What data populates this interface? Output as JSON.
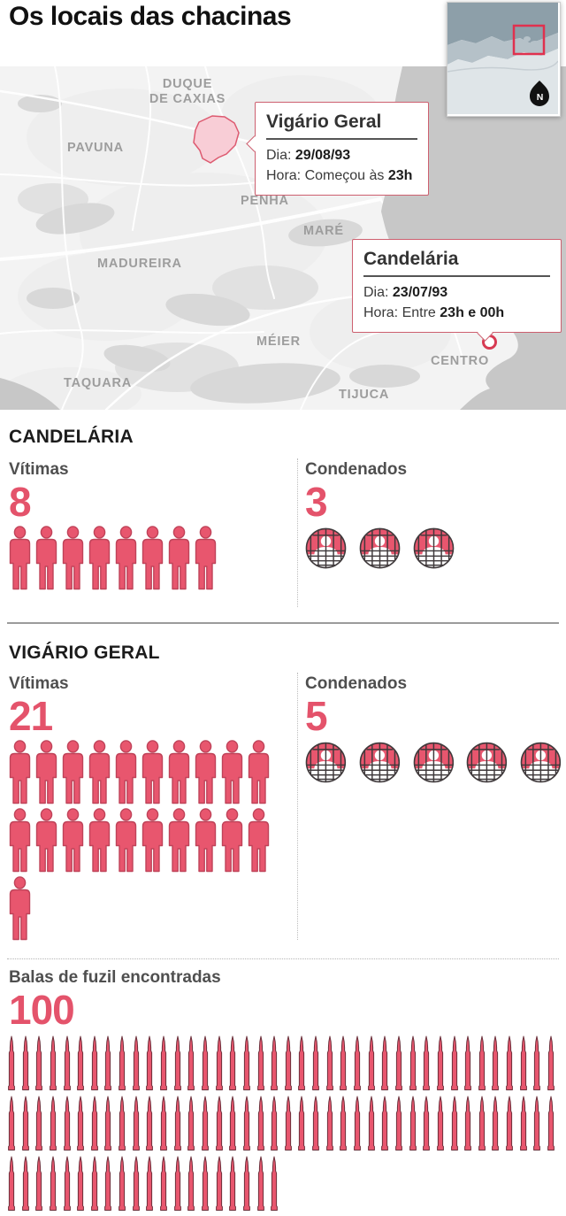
{
  "title": "Os locais das chacinas",
  "colors": {
    "accent_red": "#e4536b",
    "icon_fill": "#e8566e",
    "map_water": "#c7c7c7",
    "map_highlight_fill": "#f8cdd6",
    "map_highlight_stroke": "#dd5a70",
    "callout_border": "#cd5f6f"
  },
  "map": {
    "labels": [
      "DUQUE\nDE CAXIAS",
      "PAVUNA",
      "PENHA",
      "MARÉ",
      "MADUREIRA",
      "MÉIER",
      "CENTRO",
      "TAQUARA",
      "TIJUCA"
    ],
    "inset_compass_label": "N"
  },
  "callouts": {
    "vigario_geral": {
      "title": "Vigário Geral",
      "dia_label": "Dia:",
      "dia_value": "29/08/93",
      "hora_label": "Hora: Começou às",
      "hora_value": "23h"
    },
    "candelaria": {
      "title": "Candelária",
      "dia_label": "Dia:",
      "dia_value": "23/07/93",
      "hora_label": "Hora: Entre",
      "hora_value": "23h e 00h"
    }
  },
  "sections": {
    "candelaria": {
      "heading": "CANDELÁRIA",
      "victims_label": "Vítimas",
      "victims_count": 8,
      "convicted_label": "Condenados",
      "convicted_count": 3
    },
    "vigario_geral": {
      "heading": "VIGÁRIO GERAL",
      "victims_label": "Vítimas",
      "victims_count": 21,
      "convicted_label": "Condenados",
      "convicted_count": 5
    },
    "bullets": {
      "label": "Balas de fuzil encontradas",
      "count": 100
    }
  },
  "icons": {
    "victim": "person-icon",
    "convicted": "prisoner-behind-bars-icon",
    "bullet": "rifle-bullet-icon",
    "compass": "north-compass-icon",
    "marker": "location-ring-icon"
  },
  "chart_data": [
    {
      "type": "pictograph",
      "title": "Candelária",
      "categories": [
        "Vítimas",
        "Condenados"
      ],
      "values": [
        8,
        3
      ]
    },
    {
      "type": "pictograph",
      "title": "Vigário Geral",
      "categories": [
        "Vítimas",
        "Condenados"
      ],
      "values": [
        21,
        5
      ]
    },
    {
      "type": "pictograph",
      "title": "Balas de fuzil encontradas",
      "values": [
        100
      ]
    },
    {
      "type": "map",
      "title": "Os locais das chacinas",
      "points": [
        {
          "name": "Vigário Geral",
          "dia": "29/08/93",
          "hora": "Começou às 23h"
        },
        {
          "name": "Candelária",
          "dia": "23/07/93",
          "hora": "Entre 23h e 00h"
        }
      ]
    }
  ]
}
